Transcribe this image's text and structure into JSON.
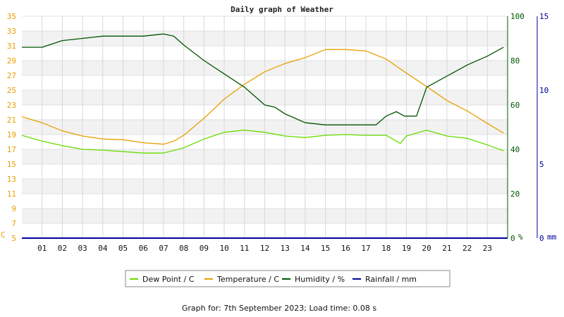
{
  "chart_data": {
    "type": "line",
    "title": "Daily graph of Weather",
    "footer": "Graph for: 7th September 2023; Load time: 0.08 s",
    "x_ticks": [
      "01",
      "02",
      "03",
      "04",
      "05",
      "06",
      "07",
      "08",
      "09",
      "10",
      "11",
      "12",
      "13",
      "14",
      "15",
      "16",
      "17",
      "18",
      "19",
      "20",
      "21",
      "22",
      "23"
    ],
    "xlim": [
      0,
      24
    ],
    "axes": {
      "temperature": {
        "unit": "C",
        "ticks": [
          "5",
          "7",
          "9",
          "11",
          "13",
          "15",
          "17",
          "19",
          "21",
          "23",
          "25",
          "27",
          "29",
          "31",
          "33",
          "35"
        ],
        "ylim": [
          5,
          35
        ],
        "color": "#e8a000"
      },
      "humidity": {
        "unit": "%",
        "ticks": [
          "0",
          "20",
          "40",
          "60",
          "80",
          "100"
        ],
        "ylim": [
          0,
          100
        ],
        "color": "#005500"
      },
      "rainfall": {
        "unit": "mm",
        "ticks": [
          "0",
          "5",
          "10",
          "15"
        ],
        "ylim": [
          0,
          15
        ],
        "color": "#000099"
      }
    },
    "series": [
      {
        "name": "Dew Point / C",
        "axis": "temperature",
        "color": "#66dd00",
        "x": [
          0,
          1,
          2,
          3,
          4,
          5,
          6,
          7,
          8,
          9,
          10,
          11,
          12,
          13,
          14,
          15,
          16,
          17,
          18,
          18.7,
          19,
          20,
          21,
          22,
          23,
          23.8
        ],
        "y": [
          18.9,
          18.1,
          17.5,
          17.0,
          16.9,
          16.7,
          16.5,
          16.5,
          17.2,
          18.4,
          19.3,
          19.6,
          19.3,
          18.8,
          18.6,
          18.9,
          19.0,
          18.9,
          18.9,
          17.8,
          18.8,
          19.6,
          18.8,
          18.5,
          17.6,
          16.8
        ]
      },
      {
        "name": "Temperature / C",
        "axis": "temperature",
        "color": "#e8a000",
        "x": [
          0,
          1,
          2,
          3,
          4,
          5,
          6,
          7,
          7.5,
          8,
          9,
          10,
          11,
          12,
          13,
          14,
          15,
          16,
          17,
          18,
          19,
          20,
          21,
          22,
          23,
          23.8
        ],
        "y": [
          21.4,
          20.6,
          19.5,
          18.8,
          18.4,
          18.3,
          17.9,
          17.7,
          18.1,
          18.9,
          21.2,
          23.8,
          25.8,
          27.5,
          28.6,
          29.4,
          30.5,
          30.5,
          30.3,
          29.2,
          27.3,
          25.5,
          23.6,
          22.2,
          20.5,
          19.2
        ]
      },
      {
        "name": "Humidity / %",
        "axis": "humidity",
        "color": "#005500",
        "x": [
          0,
          1,
          2,
          3,
          4,
          5,
          6,
          7,
          7.5,
          8,
          9,
          10,
          11,
          11.5,
          12,
          12.5,
          13,
          13.5,
          14,
          15,
          16,
          17,
          17.5,
          18,
          18.5,
          18.9,
          19.5,
          20,
          21,
          22,
          23,
          23.8
        ],
        "y": [
          86,
          86,
          89,
          90,
          91,
          91,
          91,
          92,
          91,
          87,
          80,
          74,
          68,
          64,
          60,
          59,
          56,
          54,
          52,
          51,
          51,
          51,
          51,
          55,
          57,
          55,
          55,
          68,
          73,
          78,
          82,
          86
        ]
      },
      {
        "name": "Rainfall / mm",
        "axis": "rainfall",
        "color": "#000099",
        "x": [
          0,
          24
        ],
        "y": [
          0,
          0
        ]
      }
    ],
    "legend": [
      "Dew Point / C",
      "Temperature / C",
      "Humidity / %",
      "Rainfall / mm"
    ],
    "legend_position": "bottom",
    "grid": true
  }
}
